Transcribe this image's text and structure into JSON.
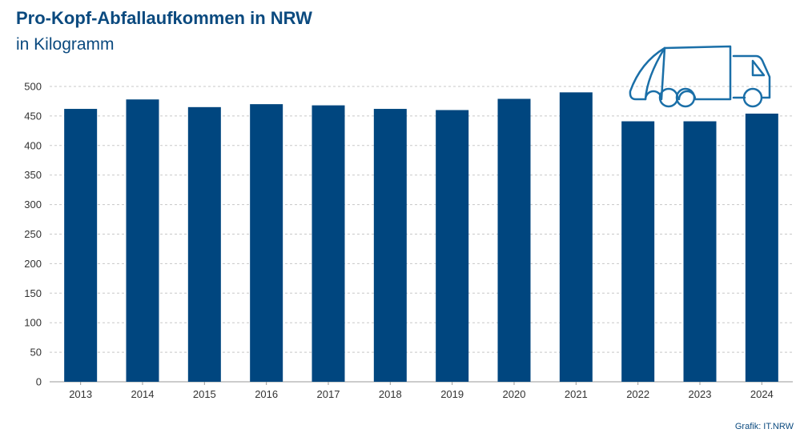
{
  "header": {
    "title": "Pro-Kopf-Abfallaufkommen in NRW",
    "subtitle": "in Kilogramm"
  },
  "footer": {
    "credit": "Grafik: IT.NRW"
  },
  "icon": "garbage-truck-icon",
  "chart_data": {
    "type": "bar",
    "title": "Pro-Kopf-Abfallaufkommen in NRW",
    "subtitle": "in Kilogramm",
    "categories": [
      "2013",
      "2014",
      "2015",
      "2016",
      "2017",
      "2018",
      "2019",
      "2020",
      "2021",
      "2022",
      "2023",
      "2024"
    ],
    "values": [
      462,
      478,
      465,
      470,
      468,
      462,
      460,
      479,
      490,
      441,
      441,
      454
    ],
    "yticks": [
      0,
      50,
      100,
      150,
      200,
      250,
      300,
      350,
      400,
      450,
      500
    ],
    "ylim": [
      0,
      500
    ],
    "grid": true,
    "bar_color": "#00467f",
    "text_color": "#0b4a7f"
  }
}
